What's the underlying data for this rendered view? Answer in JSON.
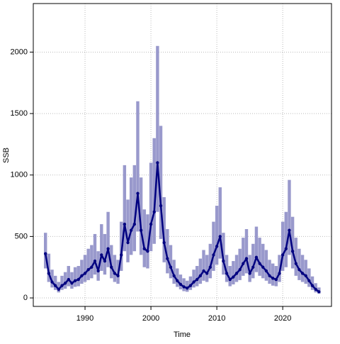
{
  "chart_data": {
    "type": "line",
    "xlabel": "Time",
    "ylabel": "SSB",
    "x": [
      1984,
      1984.5,
      1985,
      1985.5,
      1986,
      1986.5,
      1987,
      1987.5,
      1988,
      1988.5,
      1989,
      1989.5,
      1990,
      1990.5,
      1991,
      1991.5,
      1992,
      1992.5,
      1993,
      1993.5,
      1994,
      1994.5,
      1995,
      1995.5,
      1996,
      1996.5,
      1997,
      1997.5,
      1998,
      1998.5,
      1999,
      1999.5,
      2000,
      2000.5,
      2001,
      2001.5,
      2002,
      2002.5,
      2003,
      2003.5,
      2004,
      2004.5,
      2005,
      2005.5,
      2006,
      2006.5,
      2007,
      2007.5,
      2008,
      2008.5,
      2009,
      2009.5,
      2010,
      2010.5,
      2011,
      2011.5,
      2012,
      2012.5,
      2013,
      2013.5,
      2014,
      2014.5,
      2015,
      2015.5,
      2016,
      2016.5,
      2017,
      2017.5,
      2018,
      2018.5,
      2019,
      2019.5,
      2020,
      2020.5,
      2021,
      2021.5,
      2022,
      2022.5,
      2023,
      2023.5,
      2024,
      2024.5,
      2025,
      2025.5
    ],
    "values": [
      360,
      200,
      130,
      100,
      70,
      100,
      120,
      150,
      120,
      140,
      150,
      180,
      200,
      230,
      250,
      300,
      220,
      350,
      300,
      400,
      250,
      200,
      180,
      350,
      600,
      450,
      550,
      600,
      850,
      550,
      400,
      380,
      600,
      700,
      1100,
      750,
      450,
      320,
      250,
      180,
      140,
      110,
      90,
      80,
      100,
      130,
      150,
      180,
      220,
      200,
      250,
      350,
      420,
      500,
      300,
      200,
      150,
      170,
      200,
      230,
      280,
      320,
      200,
      250,
      330,
      280,
      250,
      220,
      180,
      160,
      150,
      200,
      350,
      400,
      550,
      380,
      280,
      230,
      200,
      180,
      140,
      100,
      70,
      50
    ],
    "lower": [
      240,
      130,
      85,
      65,
      45,
      65,
      75,
      95,
      75,
      90,
      95,
      115,
      130,
      145,
      160,
      190,
      140,
      220,
      190,
      250,
      160,
      130,
      115,
      220,
      380,
      290,
      350,
      380,
      540,
      350,
      250,
      240,
      380,
      440,
      700,
      480,
      290,
      200,
      160,
      115,
      90,
      70,
      55,
      50,
      65,
      85,
      95,
      115,
      140,
      130,
      160,
      220,
      270,
      320,
      190,
      130,
      95,
      110,
      130,
      145,
      180,
      200,
      130,
      160,
      210,
      180,
      160,
      140,
      115,
      100,
      95,
      130,
      220,
      250,
      350,
      240,
      180,
      145,
      130,
      115,
      90,
      65,
      45,
      35
    ],
    "upper": [
      530,
      360,
      230,
      180,
      130,
      180,
      210,
      260,
      210,
      250,
      260,
      310,
      350,
      400,
      430,
      520,
      380,
      600,
      520,
      700,
      430,
      350,
      310,
      620,
      1080,
      800,
      980,
      1080,
      1600,
      980,
      720,
      680,
      1100,
      1300,
      2050,
      1400,
      820,
      560,
      430,
      310,
      240,
      190,
      160,
      140,
      175,
      230,
      260,
      320,
      390,
      350,
      440,
      620,
      750,
      900,
      530,
      350,
      260,
      300,
      350,
      400,
      490,
      560,
      350,
      440,
      580,
      490,
      440,
      390,
      310,
      280,
      260,
      350,
      620,
      700,
      960,
      660,
      490,
      400,
      350,
      310,
      240,
      175,
      120,
      85
    ],
    "color": "#000080",
    "band_color": "#9999cc",
    "xlim": [
      1982.15,
      2027.4
    ],
    "ylim": [
      -69,
      2395
    ],
    "xticks": [
      1990,
      2000,
      2010,
      2020
    ],
    "yticks": [
      0,
      500,
      1000,
      1500,
      2000
    ],
    "grid": true
  }
}
